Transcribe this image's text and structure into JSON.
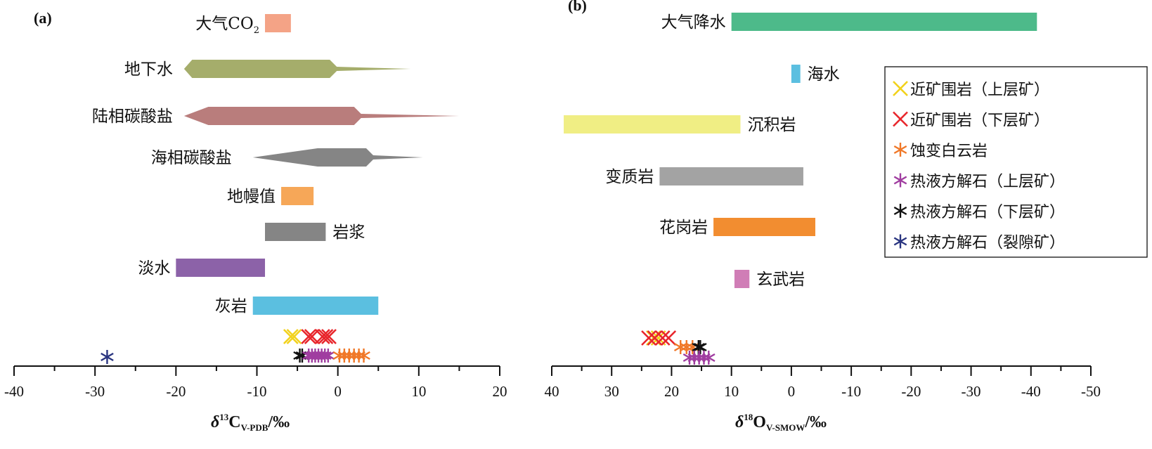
{
  "chart_data": [
    {
      "panel_label": "(a)",
      "type": "range-bar",
      "xlabel_main": "δ",
      "xlabel_sup": "13",
      "xlabel_element": "C",
      "xlabel_sub": "V-PDB",
      "xlabel_unit": "/‰",
      "xlim": [
        -40,
        20
      ],
      "ticks": [
        -40,
        -30,
        -20,
        -10,
        0,
        10,
        20
      ],
      "ranges": [
        {
          "label": "大气CO",
          "label_sub": "2",
          "shape": "bar",
          "min": -9,
          "max": -5.8,
          "color": "#f4a386",
          "label_side": "left"
        },
        {
          "label": "地下水",
          "shape": "spindle",
          "min": -19,
          "core_min": -18,
          "core_max": -1,
          "max": 9,
          "color": "#a5ad6b",
          "label_side": "left"
        },
        {
          "label": "陆相碳酸盐",
          "shape": "spindle",
          "min": -19,
          "core_min": -16,
          "core_max": 2,
          "max": 15,
          "color": "#b97d7c",
          "label_side": "left"
        },
        {
          "label": "海相碳酸盐",
          "shape": "spindle",
          "min": -10.5,
          "core_min": -2.5,
          "core_max": 3.5,
          "max": 10.5,
          "color": "#858585",
          "label_side": "left"
        },
        {
          "label": "地幔值",
          "shape": "bar",
          "min": -7,
          "max": -3,
          "color": "#f6a758",
          "label_side": "left"
        },
        {
          "label": "岩浆",
          "shape": "bar",
          "min": -9,
          "max": -1.5,
          "color": "#858585",
          "label_side": "right"
        },
        {
          "label": "淡水",
          "shape": "bar",
          "min": -20,
          "max": -9,
          "color": "#8c62a8",
          "label_side": "left"
        },
        {
          "label": "灰岩",
          "shape": "bar",
          "min": -10.5,
          "max": 5,
          "color": "#5bbfe0",
          "label_side": "left"
        }
      ],
      "samples": [
        {
          "series": "yellow_x",
          "values": [
            -5.8,
            -5.4
          ]
        },
        {
          "series": "red_x",
          "values": [
            -3.6,
            -3.2,
            -1.9,
            -1.5,
            -1.1
          ]
        },
        {
          "series": "black_star",
          "values": [
            -4.7,
            -4.4
          ]
        },
        {
          "series": "purple_star",
          "values": [
            -3.6,
            -3.2,
            -2.8,
            -2.4,
            -2.0,
            -1.6,
            -1.2
          ]
        },
        {
          "series": "orange_star",
          "values": [
            0.2,
            0.8,
            1.4,
            2.0,
            2.6,
            3.2
          ]
        },
        {
          "series": "navy_star",
          "values": [
            -28.5
          ]
        }
      ]
    },
    {
      "panel_label": "(b)",
      "type": "range-bar",
      "xlabel_main": "δ",
      "xlabel_sup": "18",
      "xlabel_element": "O",
      "xlabel_sub": "V-SMOW",
      "xlabel_unit": "/‰",
      "xlim": [
        40,
        -50
      ],
      "ticks": [
        40,
        30,
        20,
        10,
        0,
        -10,
        -20,
        -30,
        -40,
        -50
      ],
      "ranges": [
        {
          "label": "大气降水",
          "shape": "bar",
          "min": -41,
          "max": 10,
          "color": "#4dba8a",
          "label_side": "left"
        },
        {
          "label": "海水",
          "shape": "bar",
          "min": -1.5,
          "max": 0,
          "color": "#5bbfe0",
          "label_side": "right"
        },
        {
          "label": "沉积岩",
          "shape": "bar",
          "min": 8.5,
          "max": 38,
          "color": "#f0ee84",
          "label_side": "right"
        },
        {
          "label": "变质岩",
          "shape": "bar",
          "min": -2,
          "max": 22,
          "color": "#a3a3a3",
          "label_side": "left"
        },
        {
          "label": "花岗岩",
          "shape": "bar",
          "min": -4,
          "max": 13,
          "color": "#f28d30",
          "label_side": "left"
        },
        {
          "label": "玄武岩",
          "shape": "bar",
          "min": 7,
          "max": 9.5,
          "color": "#d07db6",
          "label_side": "right"
        }
      ],
      "samples": [
        {
          "series": "yellow_x",
          "values": [
            23,
            22.2
          ]
        },
        {
          "series": "red_x",
          "values": [
            23.8,
            22.8,
            21.5,
            20.5
          ]
        },
        {
          "series": "orange_star",
          "values": [
            18.5,
            17.5,
            16.5
          ]
        },
        {
          "series": "black_star",
          "values": [
            15.5,
            15.2
          ]
        },
        {
          "series": "purple_star",
          "values": [
            17,
            16.2,
            15.4,
            14.6,
            13.8
          ]
        }
      ],
      "legend": {
        "position": "right",
        "items": [
          {
            "series": "yellow_x",
            "marker": "x",
            "color": "#f2d21c",
            "label": "近矿围岩（上层矿）"
          },
          {
            "series": "red_x",
            "marker": "x",
            "color": "#e8252b",
            "label": "近矿围岩（下层矿）"
          },
          {
            "series": "orange_star",
            "marker": "star",
            "color": "#f07828",
            "label": "蚀变白云岩"
          },
          {
            "series": "purple_star",
            "marker": "star",
            "color": "#a03da0",
            "label": "热液方解石（上层矿）"
          },
          {
            "series": "black_star",
            "marker": "star",
            "color": "#111111",
            "label": "热液方解石（下层矿）"
          },
          {
            "series": "navy_star",
            "marker": "star",
            "color": "#2a3580",
            "label": "热液方解石（裂隙矿）"
          }
        ]
      }
    }
  ]
}
